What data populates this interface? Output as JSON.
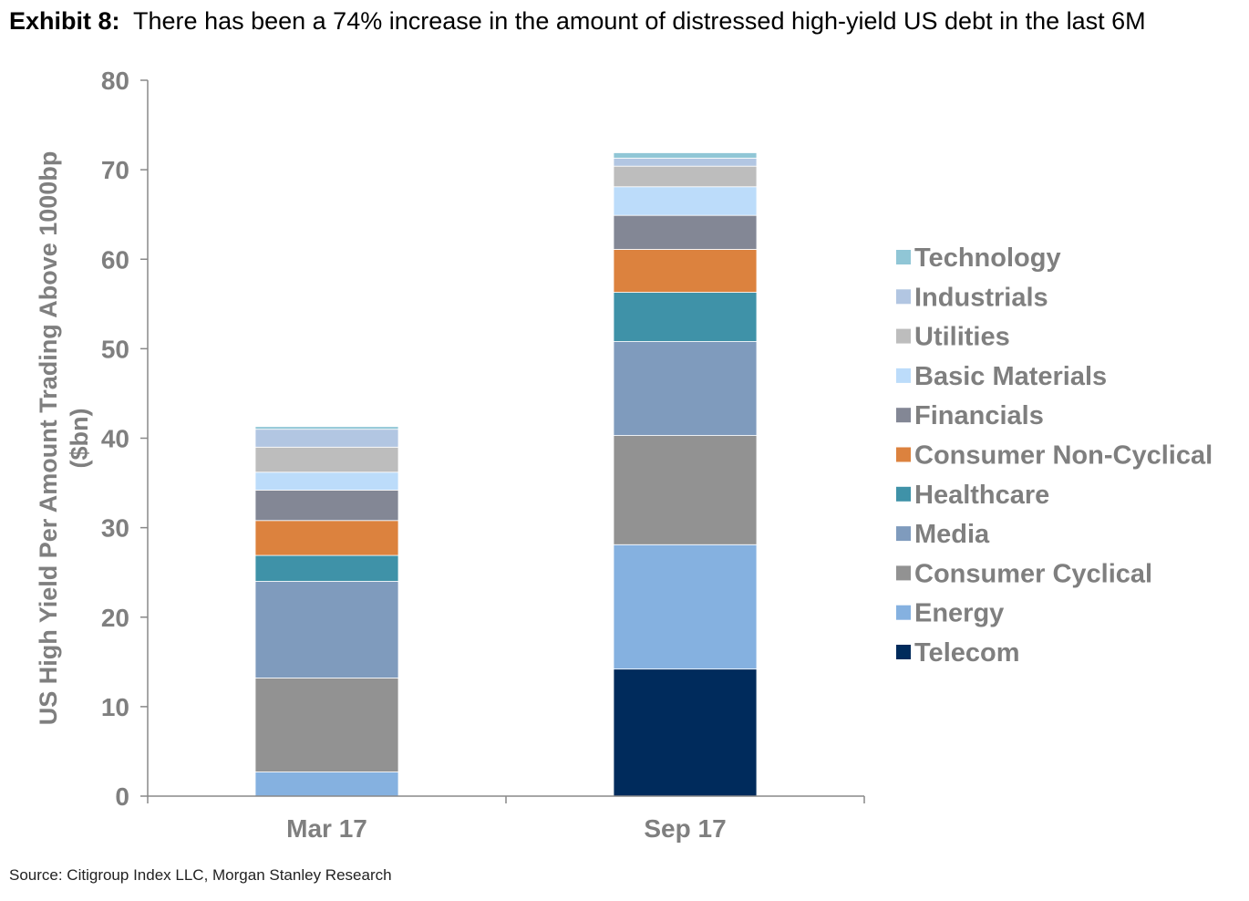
{
  "title": {
    "prefix": "Exhibit 8:",
    "text": "There has been a 74% increase in the amount of distressed high-yield US debt in the last 6M"
  },
  "source": "Source: Citigroup Index LLC, Morgan Stanley Research",
  "chart_data": {
    "type": "bar",
    "stacked": true,
    "categories": [
      "Mar 17",
      "Sep 17"
    ],
    "ylabel_lines": [
      "US High Yield Per Amount Trading Above 1000bp",
      "($bn)"
    ],
    "ylim": [
      0,
      80
    ],
    "yticks": [
      0,
      10,
      20,
      30,
      40,
      50,
      60,
      70,
      80
    ],
    "legend_position": "right",
    "series": [
      {
        "name": "Telecom",
        "color": "#002b5c",
        "values": [
          0,
          14.2
        ]
      },
      {
        "name": "Energy",
        "color": "#85b1e0",
        "values": [
          2.7,
          13.9
        ]
      },
      {
        "name": "Consumer Cyclical",
        "color": "#929292",
        "values": [
          10.5,
          12.2
        ]
      },
      {
        "name": "Media",
        "color": "#7f9bbd",
        "values": [
          10.8,
          10.5
        ]
      },
      {
        "name": "Healthcare",
        "color": "#3f92a8",
        "values": [
          2.9,
          5.5
        ]
      },
      {
        "name": "Consumer Non-Cyclical",
        "color": "#dc823e",
        "values": [
          3.9,
          4.8
        ]
      },
      {
        "name": "Financials",
        "color": "#838795",
        "values": [
          3.4,
          3.8
        ]
      },
      {
        "name": "Basic Materials",
        "color": "#bcdcfa",
        "values": [
          2.0,
          3.2
        ]
      },
      {
        "name": "Utilities",
        "color": "#bdbdbd",
        "values": [
          2.8,
          2.3
        ]
      },
      {
        "name": "Industrials",
        "color": "#b2c6e2",
        "values": [
          2.0,
          0.9
        ]
      },
      {
        "name": "Technology",
        "color": "#90c6d6",
        "values": [
          0.3,
          0.6
        ]
      }
    ]
  }
}
